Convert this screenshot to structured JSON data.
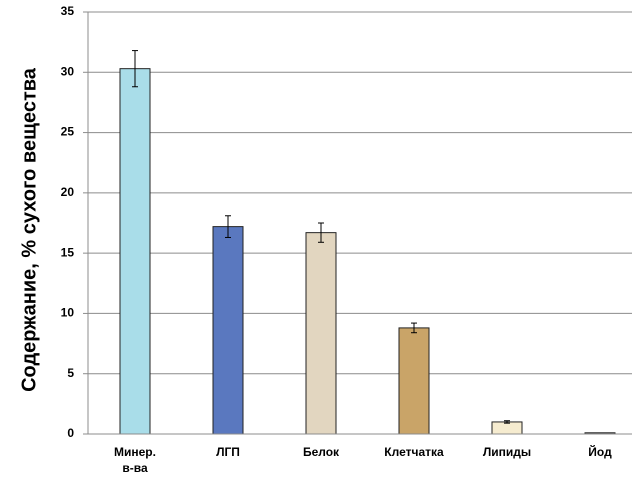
{
  "chart_data": {
    "type": "bar",
    "y_label": "Содержание, % сухого вещества",
    "categories": [
      "Минер.\nв-ва",
      "ЛГП",
      "Белок",
      "Клетчатка",
      "Липиды",
      "Йод"
    ],
    "values": [
      30.3,
      17.2,
      16.7,
      8.8,
      1.0,
      0.1
    ],
    "errors": [
      1.5,
      0.9,
      0.8,
      0.4,
      0.1,
      0
    ],
    "colors": [
      "#a9dde9",
      "#5a78bf",
      "#e2d6c0",
      "#c9a468",
      "#f6ecd0",
      "#9a9a9a"
    ],
    "ylim": [
      0,
      35
    ],
    "yticks": [
      0,
      5,
      10,
      15,
      20,
      25,
      30,
      35
    ],
    "grid": true
  }
}
